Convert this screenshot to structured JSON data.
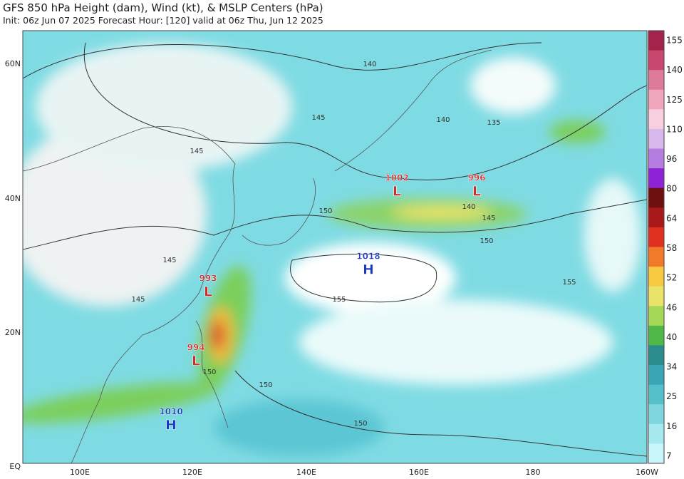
{
  "header": {
    "title": "GFS 850 hPa Height (dam), Wind (kt), & MSLP Centers (hPa)",
    "subtitle": "Init: 06z Jun 07 2025   Forecast Hour: [120]   valid at 06z Thu, Jun 12 2025"
  },
  "axes": {
    "lat_labels": [
      "60N",
      "40N",
      "20N",
      "EQ"
    ],
    "lon_labels": [
      "100E",
      "120E",
      "140E",
      "160E",
      "180",
      "160W"
    ]
  },
  "colorbar": {
    "labels": [
      155,
      140,
      125,
      110,
      96,
      80,
      64,
      58,
      52,
      46,
      40,
      34,
      25,
      16,
      7
    ]
  },
  "centers": [
    {
      "type": "L",
      "pressure": 1002
    },
    {
      "type": "L",
      "pressure": 996
    },
    {
      "type": "H",
      "pressure": 1018
    },
    {
      "type": "L",
      "pressure": 993
    },
    {
      "type": "L",
      "pressure": 994
    },
    {
      "type": "H",
      "pressure": 1010
    }
  ],
  "contour_labels": [
    "140",
    "140",
    "140",
    "135",
    "145",
    "145",
    "145",
    "145",
    "150",
    "150",
    "150",
    "150",
    "155",
    "155",
    "145",
    "150"
  ]
}
